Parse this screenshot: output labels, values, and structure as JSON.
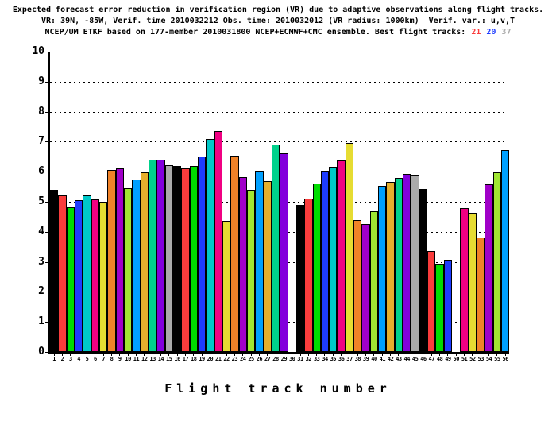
{
  "background_color": "#ffffff",
  "axis_color": "#000000",
  "chart_data": {
    "type": "bar",
    "title_lines": [
      "Expected forecast error reduction in verification region (VR) due to adaptive observations along flight tracks.",
      "VR: 39N, -85W, Verif. time 2010032212 Obs. time: 2010032012 (VR radius: 1000km)  Verif. var.: u,v,T",
      "NCEP/UM ETKF based on 177-member 2010031800 NCEP+ECMWF+CMC ensemble. Best flight tracks:"
    ],
    "best_tracks": [
      {
        "label": "21",
        "color": "#fa3c3c"
      },
      {
        "label": "20",
        "color": "#1e3cff"
      },
      {
        "label": "37",
        "color": "#aaaaaa"
      }
    ],
    "xlabel": "Flight track number",
    "ylabel": "",
    "ylim": [
      0,
      10
    ],
    "yticks": [
      0,
      1,
      2,
      3,
      4,
      5,
      6,
      7,
      8,
      9,
      10
    ],
    "grid": "horizontal dotted lines at every integer",
    "legend": "none",
    "palette_cycle": [
      "#000000",
      "#fa3c3c",
      "#00dc00",
      "#1e3cff",
      "#00c8c8",
      "#f00082",
      "#e6dc32",
      "#f08228",
      "#a000c8",
      "#a0e632",
      "#00a0ff",
      "#e6af2d",
      "#00d28c",
      "#8200dc",
      "#aaaaaa"
    ],
    "categories": [
      "1",
      "2",
      "3",
      "4",
      "5",
      "6",
      "7",
      "8",
      "9",
      "10",
      "11",
      "12",
      "13",
      "14",
      "15",
      "16",
      "17",
      "18",
      "19",
      "20",
      "21",
      "22",
      "23",
      "24",
      "25",
      "26",
      "27",
      "28",
      "29",
      "30",
      "31",
      "32",
      "33",
      "34",
      "35",
      "36",
      "37",
      "38",
      "39",
      "40",
      "41",
      "42",
      "43",
      "44",
      "45",
      "46",
      "47",
      "48",
      "49",
      "50",
      "51",
      "52",
      "53",
      "54",
      "55",
      "56"
    ],
    "values": [
      5.4,
      5.2,
      4.82,
      5.06,
      5.21,
      5.08,
      5.0,
      6.05,
      6.1,
      5.46,
      5.75,
      5.98,
      6.4,
      6.4,
      6.22,
      6.18,
      6.11,
      6.19,
      6.5,
      7.1,
      7.35,
      4.37,
      6.53,
      5.82,
      5.39,
      6.02,
      5.69,
      6.9,
      6.62,
      null,
      4.89,
      5.11,
      5.61,
      6.03,
      6.16,
      6.37,
      6.95,
      4.4,
      4.26,
      4.68,
      5.52,
      5.66,
      5.79,
      5.93,
      5.9,
      5.43,
      3.36,
      2.94,
      3.07,
      null,
      4.78,
      4.64,
      3.82,
      5.57,
      5.97,
      6.72
    ]
  }
}
